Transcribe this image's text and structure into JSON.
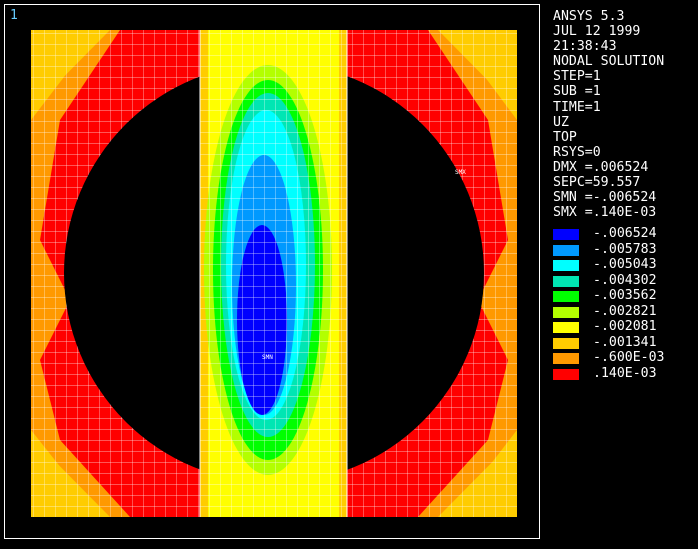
{
  "window_number": "1",
  "info": {
    "program": "ANSYS 5.3",
    "date": "JUL 12 1999",
    "time": "21:38:43",
    "solution_type": "NODAL SOLUTION",
    "step": "STEP=1",
    "sub": "SUB =1",
    "time_value": "TIME=1",
    "component": "UZ",
    "surface": "TOP",
    "rsys": "RSYS=0",
    "dmx": "DMX =.006524",
    "sepc": "SEPC=59.557",
    "smn": "SMN =-.006524",
    "smx": "SMX =.140E-03"
  },
  "plot_labels": {
    "min_marker": "SMN",
    "max_marker": "SMX"
  },
  "legend": [
    {
      "label": "-.006524",
      "color": "#0000ff"
    },
    {
      "label": "-.005783",
      "color": "#0099ff"
    },
    {
      "label": "-.005043",
      "color": "#00ffff"
    },
    {
      "label": "-.004302",
      "color": "#00e6b3"
    },
    {
      "label": "-.003562",
      "color": "#00ff00"
    },
    {
      "label": "-.002821",
      "color": "#b3ff00"
    },
    {
      "label": "-.002081",
      "color": "#ffff00"
    },
    {
      "label": "-.001341",
      "color": "#ffcc00"
    },
    {
      "label": "-.600E-03",
      "color": "#ff9900"
    },
    {
      "label": ".140E-03",
      "color": "#ff0000"
    }
  ]
}
